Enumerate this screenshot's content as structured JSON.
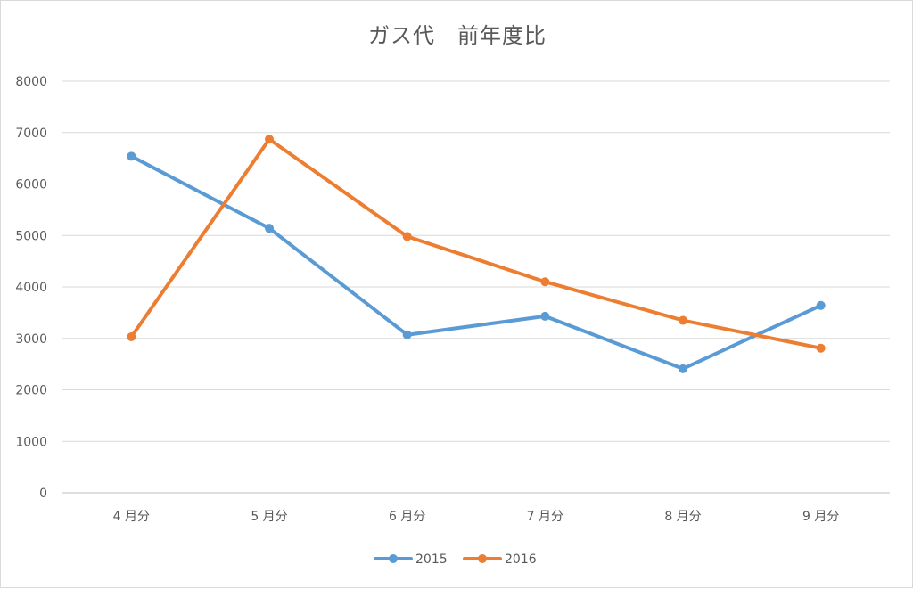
{
  "chart_data": {
    "type": "line",
    "title": "ガス代　前年度比",
    "xlabel": "",
    "ylabel": "",
    "categories": [
      "4 月分",
      "5 月分",
      "6 月分",
      "7 月分",
      "8 月分",
      "9 月分"
    ],
    "ylim": [
      0,
      8000
    ],
    "yticks": [
      "0",
      "1000",
      "2000",
      "3000",
      "4000",
      "5000",
      "6000",
      "7000",
      "8000"
    ],
    "grid": true,
    "legend_position": "bottom",
    "series": [
      {
        "name": "2015",
        "color": "#5b9bd5",
        "values": [
          6540,
          5140,
          3070,
          3430,
          2410,
          3640
        ]
      },
      {
        "name": "2016",
        "color": "#ed7d31",
        "values": [
          3030,
          6870,
          4980,
          4100,
          3350,
          2810
        ]
      }
    ]
  }
}
